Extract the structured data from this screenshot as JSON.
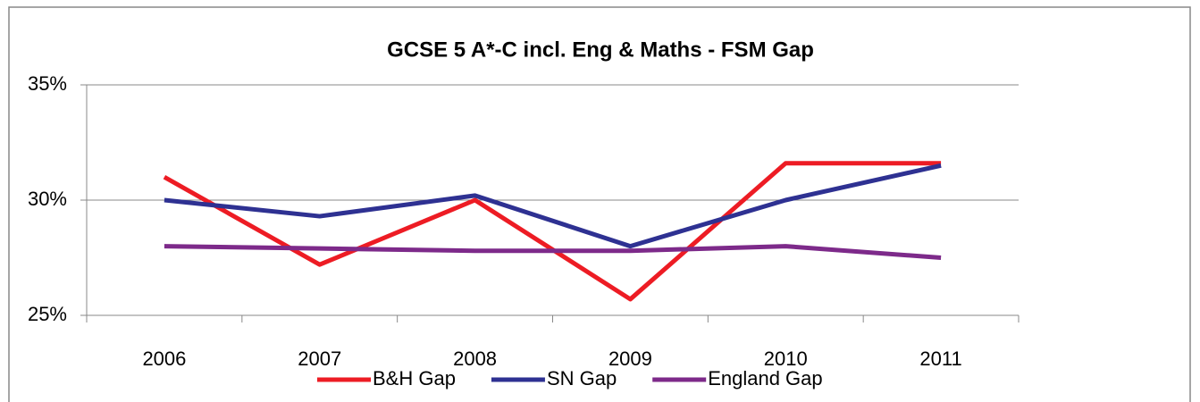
{
  "chart_data": {
    "type": "line",
    "title": "GCSE 5 A*-C incl. Eng & Maths - FSM Gap",
    "categories": [
      "2006",
      "2007",
      "2008",
      "2009",
      "2010",
      "2011"
    ],
    "series": [
      {
        "name": "B&H Gap",
        "color": "#ed1c24",
        "values": [
          31.0,
          27.2,
          30.0,
          25.7,
          31.6,
          31.6
        ]
      },
      {
        "name": "SN Gap",
        "color": "#2e3192",
        "values": [
          30.0,
          29.3,
          30.2,
          28.0,
          30.0,
          31.5
        ]
      },
      {
        "name": "England Gap",
        "color": "#7d2a8a",
        "values": [
          28.0,
          27.9,
          27.8,
          27.8,
          28.0,
          27.5
        ]
      }
    ],
    "ylim": [
      25,
      35
    ],
    "yticks": [
      {
        "value": 25,
        "label": "25%"
      },
      {
        "value": 30,
        "label": "30%"
      },
      {
        "value": 35,
        "label": "35%"
      }
    ],
    "grid": true,
    "legend": "bottom"
  }
}
